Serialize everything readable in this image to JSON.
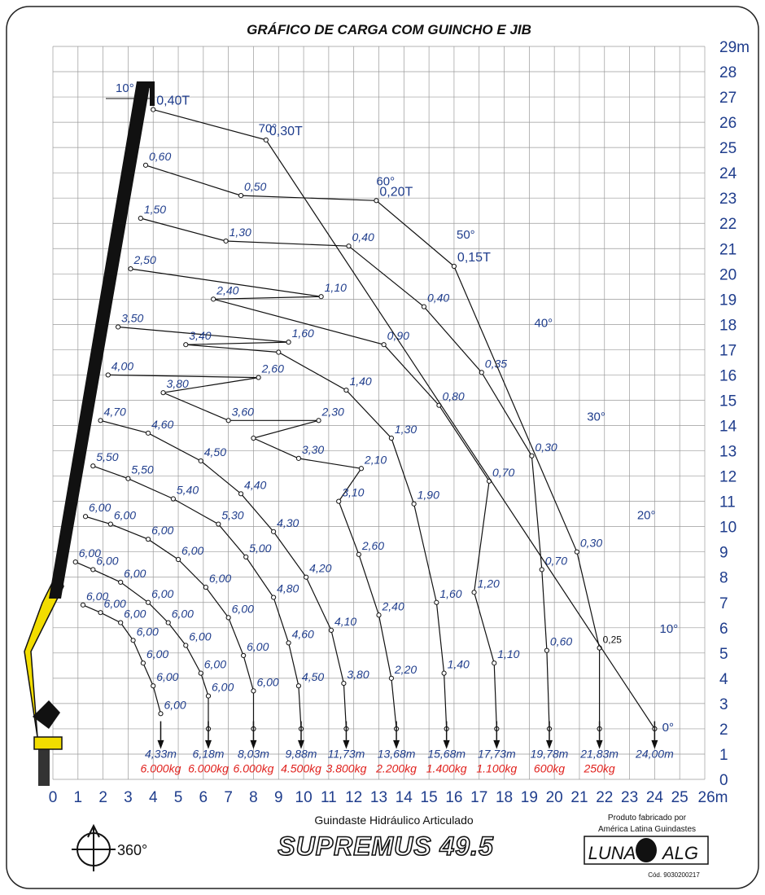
{
  "chart_data": {
    "type": "line",
    "title": "GRÁFICO DE CARGA COM GUINCHO E JIB",
    "x_ticks": [
      "0",
      "1",
      "2",
      "3",
      "4",
      "5",
      "6",
      "7",
      "8",
      "9",
      "10",
      "11",
      "12",
      "13",
      "14",
      "15",
      "16",
      "17",
      "18",
      "19",
      "20",
      "21",
      "22",
      "23",
      "24",
      "25",
      "26m"
    ],
    "y_ticks": [
      "0",
      "1",
      "2",
      "3",
      "4",
      "5",
      "6",
      "7",
      "8",
      "9",
      "10",
      "11",
      "12",
      "13",
      "14",
      "15",
      "16",
      "17",
      "18",
      "19",
      "20",
      "21",
      "22",
      "23",
      "24",
      "25",
      "26",
      "27",
      "28",
      "29m"
    ],
    "xlim": [
      0,
      26
    ],
    "ylim": [
      0,
      29
    ],
    "grid": true,
    "angles": [
      {
        "label": "70°",
        "x": 8.2,
        "y": 25.6
      },
      {
        "label": "60°",
        "x": 12.9,
        "y": 23.5
      },
      {
        "label": "50°",
        "x": 16.1,
        "y": 21.4
      },
      {
        "label": "40°",
        "x": 19.2,
        "y": 17.9
      },
      {
        "label": "30°",
        "x": 21.3,
        "y": 14.2
      },
      {
        "label": "20°",
        "x": 23.3,
        "y": 10.3
      },
      {
        "label": "10°",
        "x": 24.2,
        "y": 5.8
      },
      {
        "label": "10°",
        "x": 2.5,
        "y": 27.2
      },
      {
        "label": "0°",
        "x": 24.3,
        "y": 1.9
      }
    ],
    "series": [
      {
        "reach": "4,33m",
        "load": "6.000kg",
        "points": [
          [
            1.2,
            6.9,
            "6,00"
          ],
          [
            1.9,
            6.6,
            "6,00"
          ],
          [
            2.7,
            6.2,
            "6,00"
          ],
          [
            3.2,
            5.5,
            "6,00"
          ],
          [
            3.6,
            4.6,
            "6,00"
          ],
          [
            4.0,
            3.7,
            "6,00"
          ],
          [
            4.3,
            2.6,
            "6,00"
          ]
        ]
      },
      {
        "reach": "6,18m",
        "load": "6.000kg",
        "points": [
          [
            0.9,
            8.6,
            "6,00"
          ],
          [
            1.6,
            8.3,
            "6,00"
          ],
          [
            2.7,
            7.8,
            "6,00"
          ],
          [
            3.8,
            7.0,
            "6,00"
          ],
          [
            4.6,
            6.2,
            "6,00"
          ],
          [
            5.3,
            5.3,
            "6,00"
          ],
          [
            5.9,
            4.2,
            "6,00"
          ],
          [
            6.2,
            3.3,
            "6,00"
          ],
          [
            6.2,
            2.0,
            ""
          ]
        ]
      },
      {
        "reach": "8,03m",
        "load": "6.000kg",
        "points": [
          [
            1.3,
            10.4,
            "6,00"
          ],
          [
            2.3,
            10.1,
            "6,00"
          ],
          [
            3.8,
            9.5,
            "6,00"
          ],
          [
            5.0,
            8.7,
            "6,00"
          ],
          [
            6.1,
            7.6,
            "6,00"
          ],
          [
            7.0,
            6.4,
            "6,00"
          ],
          [
            7.6,
            4.9,
            "6,00"
          ],
          [
            8.0,
            3.5,
            "6,00"
          ],
          [
            8.0,
            2.0,
            ""
          ]
        ]
      },
      {
        "reach": "9,88m",
        "load": "4.500kg",
        "points": [
          [
            1.6,
            12.4,
            "5,50"
          ],
          [
            3.0,
            11.9,
            "5,50"
          ],
          [
            4.8,
            11.1,
            "5,40"
          ],
          [
            6.6,
            10.1,
            "5,30"
          ],
          [
            7.7,
            8.8,
            "5,00"
          ],
          [
            8.8,
            7.2,
            "4,80"
          ],
          [
            9.4,
            5.4,
            "4,60"
          ],
          [
            9.8,
            3.7,
            "4,50"
          ],
          [
            9.9,
            2.0,
            ""
          ]
        ]
      },
      {
        "reach": "11,73m",
        "load": "3.800kg",
        "points": [
          [
            1.9,
            14.2,
            "4,70"
          ],
          [
            3.8,
            13.7,
            "4,60"
          ],
          [
            5.9,
            12.6,
            "4,50"
          ],
          [
            7.5,
            11.3,
            "4,40"
          ],
          [
            8.8,
            9.8,
            "4,30"
          ],
          [
            10.1,
            8.0,
            "4,20"
          ],
          [
            11.1,
            5.9,
            "4,10"
          ],
          [
            11.6,
            3.8,
            "3,80"
          ],
          [
            11.7,
            2.0,
            ""
          ]
        ]
      },
      {
        "reach": "13,68m",
        "load": "2.200kg",
        "points": [
          [
            2.2,
            16.0,
            "4,00"
          ],
          [
            4.4,
            15.3,
            "3,80"
          ],
          [
            7.0,
            14.2,
            "3,60"
          ],
          [
            8.0,
            13.5,
            ""
          ],
          [
            8.2,
            15.9,
            "2,60"
          ],
          [
            9.8,
            12.7,
            "3,30"
          ],
          [
            10.6,
            14.2,
            "2,30"
          ],
          [
            11.4,
            11.0,
            "3,10"
          ],
          [
            12.3,
            12.3,
            "2,10"
          ],
          [
            12.2,
            8.9,
            "2,60"
          ],
          [
            13.0,
            6.5,
            "2,40"
          ],
          [
            13.5,
            4.0,
            "2,20"
          ],
          [
            13.7,
            2.0,
            ""
          ]
        ]
      },
      {
        "reach": "15,68m",
        "load": "1.400kg",
        "points": [
          [
            2.6,
            17.9,
            "3,50"
          ],
          [
            5.3,
            17.2,
            "3,40"
          ],
          [
            9.0,
            16.9,
            ""
          ],
          [
            9.4,
            17.3,
            "1,60"
          ],
          [
            11.7,
            15.4,
            "1,40"
          ],
          [
            13.5,
            13.5,
            "1,30"
          ],
          [
            14.4,
            10.9,
            "1,90"
          ],
          [
            15.3,
            7.0,
            "1,60"
          ],
          [
            15.6,
            4.2,
            "1,40"
          ],
          [
            15.7,
            2.0,
            ""
          ]
        ]
      },
      {
        "reach": "17,73m",
        "load": "1.100kg",
        "points": [
          [
            3.1,
            20.2,
            "2,50"
          ],
          [
            6.4,
            19.0,
            "2,40"
          ],
          [
            10.7,
            19.1,
            "1,10"
          ],
          [
            13.2,
            17.2,
            "0,90"
          ],
          [
            15.4,
            14.8,
            "0,80"
          ],
          [
            17.4,
            11.8,
            "0,70"
          ],
          [
            16.8,
            7.4,
            "1,20"
          ],
          [
            17.6,
            4.6,
            "1,10"
          ],
          [
            17.7,
            2.0,
            ""
          ]
        ]
      },
      {
        "reach": "19,78m",
        "load": "600kg",
        "points": [
          [
            3.5,
            22.2,
            "1,50"
          ],
          [
            6.9,
            21.3,
            "1,30"
          ],
          [
            11.8,
            21.1,
            "0,40"
          ],
          [
            14.8,
            18.7,
            "0,40"
          ],
          [
            17.1,
            16.1,
            "0,35"
          ],
          [
            19.1,
            12.8,
            "0,30"
          ],
          [
            19.5,
            8.3,
            "0,70"
          ],
          [
            19.7,
            5.1,
            "0,60"
          ],
          [
            19.8,
            2.0,
            ""
          ]
        ]
      },
      {
        "reach": "21,83m",
        "load": "250kg",
        "points": [
          [
            3.7,
            24.3,
            "0,60"
          ],
          [
            7.5,
            23.1,
            "0,50"
          ],
          [
            12.9,
            22.9,
            "0,20T"
          ],
          [
            16.0,
            20.3,
            "0,15T"
          ],
          [
            20.9,
            9.0,
            "0,30"
          ],
          [
            21.8,
            5.2,
            "0,25"
          ],
          [
            21.8,
            2.0,
            ""
          ]
        ]
      },
      {
        "reach": "24,00m",
        "load": "",
        "points": [
          [
            4.0,
            26.5,
            "0,40T"
          ],
          [
            8.5,
            25.3,
            "0,30T"
          ],
          [
            24.0,
            2.0,
            ""
          ]
        ]
      }
    ]
  },
  "footer": {
    "rotation": "360°",
    "product_line": "Guindaste Hidráulico Articulado",
    "model": "SUPREMUS 49.5",
    "maker_line1": "Produto fabricado por",
    "maker_line2": "América Latina Guindastes",
    "logo_left": "LUNA",
    "logo_right": "ALG",
    "code": "Cód. 9030200217"
  },
  "colors": {
    "grid": "#9a9a9a",
    "curve": "#111111",
    "blue_text": "#1f3d8c",
    "red_text": "#e0201c",
    "crane_yellow": "#f2dd00"
  }
}
